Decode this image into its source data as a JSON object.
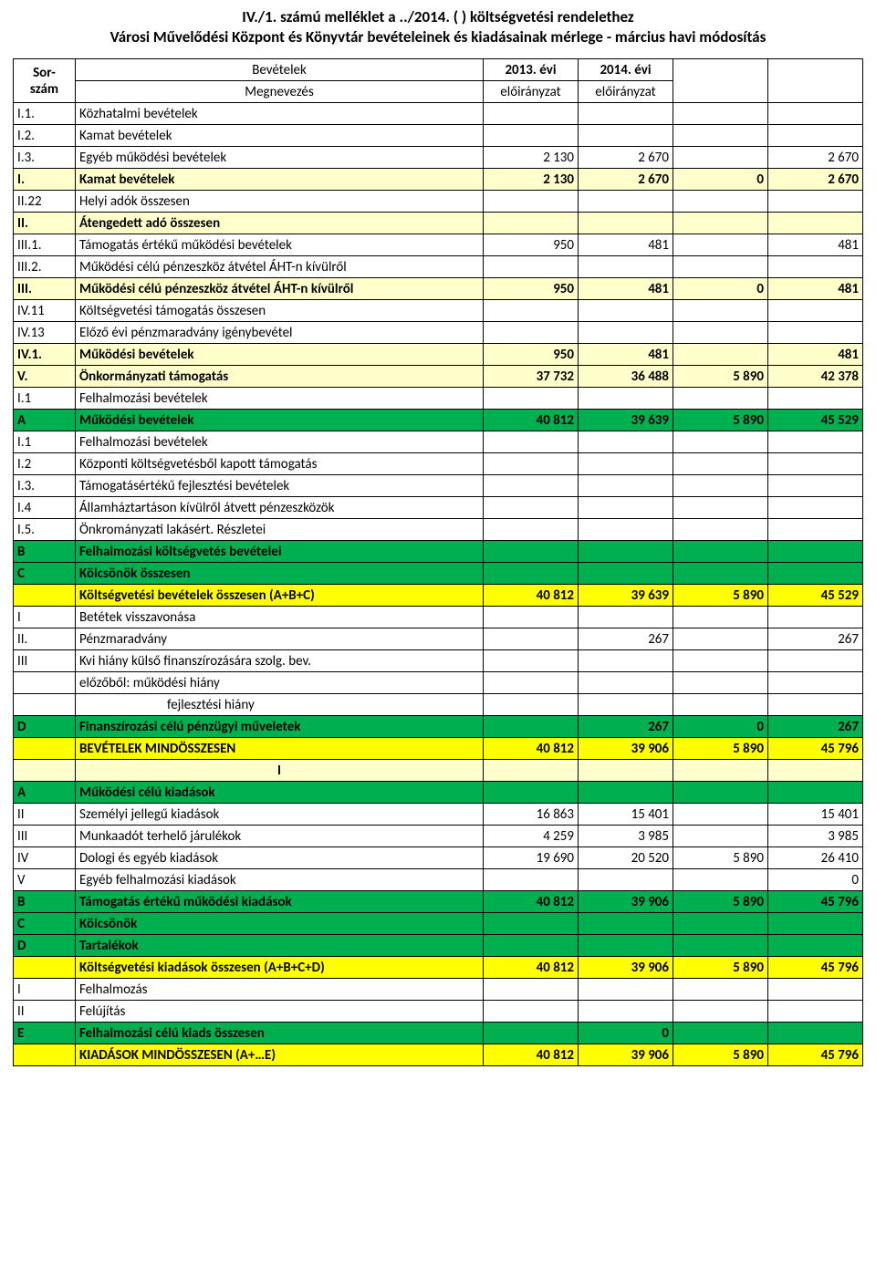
{
  "title": {
    "line1": "IV./1. számú melléklet a ../2014. (   ) költségvetési rendelethez",
    "line2": "Városi Művelődési Központ és Könyvtár bevételeinek és kiadásainak mérlege - március havi módosítás"
  },
  "header": {
    "section": "Bevételek",
    "col_code_l1": "Sor-",
    "col_code_l2": "szám",
    "col_desc": "Megnevezés",
    "col_y1_l1": "2013. évi",
    "col_y1_l2": "előirányzat",
    "col_y2_l1": "2014. évi",
    "col_y2_l2": "előirányzat"
  },
  "colors": {
    "cream": "#ffffcc",
    "green": "#00b050",
    "yellow": "#ffff00",
    "white": "#ffffff",
    "border": "#000000"
  },
  "rows": [
    {
      "code": "I.1.",
      "desc": "Közhatalmi bevételek",
      "v": [
        "",
        "",
        "",
        ""
      ],
      "cls": "bg-white"
    },
    {
      "code": "I.2.",
      "desc": "Kamat bevételek",
      "v": [
        "",
        "",
        "",
        ""
      ],
      "cls": "bg-white"
    },
    {
      "code": "I.3.",
      "desc": "Egyéb működési bevételek",
      "v": [
        "2 130",
        "2 670",
        "",
        "2 670"
      ],
      "cls": "bg-white"
    },
    {
      "code": "I.",
      "desc": "Kamat bevételek",
      "v": [
        "2 130",
        "2 670",
        "0",
        "2 670"
      ],
      "cls": "bg-cream bold"
    },
    {
      "code": "II.22",
      "desc": "Helyi adók összesen",
      "v": [
        "",
        "",
        "",
        ""
      ],
      "cls": "bg-white"
    },
    {
      "code": "II.",
      "desc": "Átengedett adó összesen",
      "v": [
        "",
        "",
        "",
        ""
      ],
      "cls": "bg-cream bold"
    },
    {
      "code": "III.1.",
      "desc": "Támogatás értékű működési bevételek",
      "v": [
        "950",
        "481",
        "",
        "481"
      ],
      "cls": "bg-white"
    },
    {
      "code": "III.2.",
      "desc": "Működési célú pénzeszköz átvétel ÁHT-n kívülről",
      "v": [
        "",
        "",
        "",
        ""
      ],
      "cls": "bg-white"
    },
    {
      "code": "III.",
      "desc": "Működési célú pénzeszköz átvétel ÁHT-n kívülről",
      "v": [
        "950",
        "481",
        "0",
        "481"
      ],
      "cls": "bg-cream bold"
    },
    {
      "code": "IV.11",
      "desc": "Költségvetési támogatás összesen",
      "v": [
        "",
        "",
        "",
        ""
      ],
      "cls": "bg-white"
    },
    {
      "code": "IV.13",
      "desc": "Előző évi pénzmaradvány igénybevétel",
      "v": [
        "",
        "",
        "",
        ""
      ],
      "cls": "bg-white"
    },
    {
      "code": "IV.1.",
      "desc": "Működési bevételek",
      "v": [
        "950",
        "481",
        "",
        "481"
      ],
      "cls": "bg-cream bold"
    },
    {
      "code": "V.",
      "desc": "Önkormányzati támogatás",
      "v": [
        "37 732",
        "36 488",
        "5 890",
        "42 378"
      ],
      "cls": "bg-cream bold"
    },
    {
      "code": "I.1",
      "desc": "Felhalmozási bevételek",
      "v": [
        "",
        "",
        "",
        ""
      ],
      "cls": "bg-white"
    },
    {
      "code": "A",
      "desc": "Működési bevételek",
      "v": [
        "40 812",
        "39 639",
        "5 890",
        "45 529"
      ],
      "cls": "bg-green bold"
    },
    {
      "code": "I.1",
      "desc": "Felhalmozási bevételek",
      "v": [
        "",
        "",
        "",
        ""
      ],
      "cls": "bg-white"
    },
    {
      "code": "I.2",
      "desc": "Központi költségvetésből kapott támogatás",
      "v": [
        "",
        "",
        "",
        ""
      ],
      "cls": "bg-white"
    },
    {
      "code": "I.3.",
      "desc": "Támogatásértékű fejlesztési bevételek",
      "v": [
        "",
        "",
        "",
        ""
      ],
      "cls": "bg-white"
    },
    {
      "code": "I.4",
      "desc": "Államháztartáson kívülről átvett pénzeszközök",
      "v": [
        "",
        "",
        "",
        ""
      ],
      "cls": "bg-white"
    },
    {
      "code": "I.5.",
      "desc": "Önkrományzati lakásért. Részletei",
      "v": [
        "",
        "",
        "",
        ""
      ],
      "cls": "bg-white"
    },
    {
      "code": "B",
      "desc": "Felhalmozási költségvetés bevételei",
      "v": [
        "",
        "",
        "",
        ""
      ],
      "cls": "bg-green bold"
    },
    {
      "code": "C",
      "desc": "Kölcsönök összesen",
      "v": [
        "",
        "",
        "",
        ""
      ],
      "cls": "bg-green bold"
    },
    {
      "code": "",
      "desc": "Költségvetési bevételek összesen (A+B+C)",
      "v": [
        "40 812",
        "39 639",
        "5 890",
        "45 529"
      ],
      "cls": "bg-yellow bold"
    },
    {
      "code": "I",
      "desc": "Betétek visszavonása",
      "v": [
        "",
        "",
        "",
        ""
      ],
      "cls": "bg-white"
    },
    {
      "code": "II.",
      "desc": "Pénzmaradvány",
      "v": [
        "",
        "267",
        "",
        "267"
      ],
      "cls": "bg-white"
    },
    {
      "code": "III",
      "desc": "Kvi hiány külső finanszírozására szolg. bev.",
      "v": [
        "",
        "",
        "",
        ""
      ],
      "cls": "bg-white"
    },
    {
      "code": "",
      "desc": "előzőből: működési hiány",
      "v": [
        "",
        "",
        "",
        ""
      ],
      "cls": "bg-white"
    },
    {
      "code": "",
      "desc": "fejlesztési hiány",
      "v": [
        "",
        "",
        "",
        ""
      ],
      "cls": "bg-white",
      "indent": true
    },
    {
      "code": "D",
      "desc": "Finanszírozási célú pénzügyi műveletek",
      "v": [
        "",
        "267",
        "0",
        "267"
      ],
      "cls": "bg-green bold"
    },
    {
      "code": "",
      "desc": "BEVÉTELEK MINDÖSSZESEN",
      "v": [
        "40 812",
        "39 906",
        "5 890",
        "45 796"
      ],
      "cls": "bg-yellow bold"
    }
  ],
  "section2_label": "I",
  "rows2": [
    {
      "code": "A",
      "desc": "Működési célú kiadások",
      "v": [
        "",
        "",
        "",
        ""
      ],
      "cls": "bg-green bold"
    },
    {
      "code": "II",
      "desc": "Személyi jellegű kiadások",
      "v": [
        "16 863",
        "15 401",
        "",
        "15 401"
      ],
      "cls": "bg-white"
    },
    {
      "code": "III",
      "desc": "Munkaadót terhelő járulékok",
      "v": [
        "4 259",
        "3 985",
        "",
        "3 985"
      ],
      "cls": "bg-white"
    },
    {
      "code": "IV",
      "desc": "Dologi és egyéb kiadások",
      "v": [
        "19 690",
        "20 520",
        "5 890",
        "26 410"
      ],
      "cls": "bg-white"
    },
    {
      "code": "V",
      "desc": "Egyéb felhalmozási kiadások",
      "v": [
        "",
        "",
        "",
        "0"
      ],
      "cls": "bg-white"
    },
    {
      "code": "B",
      "desc": "Támogatás értékű működési kiadások",
      "v": [
        "40 812",
        "39 906",
        "5 890",
        "45 796"
      ],
      "cls": "bg-green bold"
    },
    {
      "code": "C",
      "desc": "Kölcsönök",
      "v": [
        "",
        "",
        "",
        ""
      ],
      "cls": "bg-green bold"
    },
    {
      "code": "D",
      "desc": "Tartalékok",
      "v": [
        "",
        "",
        "",
        ""
      ],
      "cls": "bg-green bold"
    },
    {
      "code": "",
      "desc": "Költségvetési kiadások összesen (A+B+C+D)",
      "v": [
        "40 812",
        "39 906",
        "5 890",
        "45 796"
      ],
      "cls": "bg-yellow bold"
    },
    {
      "code": "I",
      "desc": "Felhalmozás",
      "v": [
        "",
        "",
        "",
        ""
      ],
      "cls": "bg-white"
    },
    {
      "code": "II",
      "desc": "Felújítás",
      "v": [
        "",
        "",
        "",
        ""
      ],
      "cls": "bg-white"
    },
    {
      "code": "E",
      "desc": "Felhalmozási célú kiads összesen",
      "v": [
        "",
        "0",
        "",
        ""
      ],
      "cls": "bg-green bold"
    },
    {
      "code": "",
      "desc": "KIADÁSOK MINDÖSSZESEN (A+…E)",
      "v": [
        "40 812",
        "39 906",
        "5 890",
        "45 796"
      ],
      "cls": "bg-yellow bold"
    }
  ]
}
